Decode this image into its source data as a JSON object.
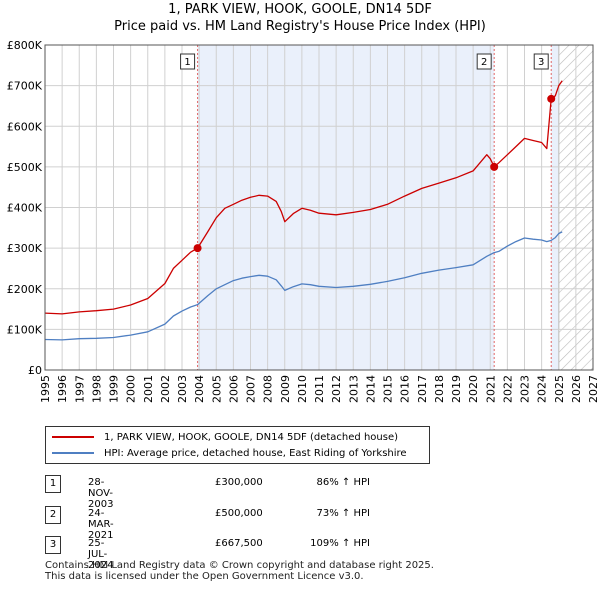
{
  "title_line1": "1, PARK VIEW, HOOK, GOOLE, DN14 5DF",
  "title_line2": "Price paid vs. HM Land Registry's House Price Index (HPI)",
  "chart_data": {
    "type": "line",
    "ylabel_ticks": [
      "£0",
      "£100K",
      "£200K",
      "£300K",
      "£400K",
      "£500K",
      "£600K",
      "£700K",
      "£800K"
    ],
    "y_ticks": [
      0,
      100000,
      200000,
      300000,
      400000,
      500000,
      600000,
      700000,
      800000
    ],
    "ylim": [
      0,
      800000
    ],
    "xlim": [
      1995,
      2027
    ],
    "x_ticks": [
      1995,
      1996,
      1997,
      1998,
      1999,
      2000,
      2001,
      2002,
      2003,
      2004,
      2005,
      2006,
      2007,
      2008,
      2009,
      2010,
      2011,
      2012,
      2013,
      2014,
      2015,
      2016,
      2017,
      2018,
      2019,
      2020,
      2021,
      2022,
      2023,
      2024,
      2025,
      2026,
      2027
    ],
    "future_start": 2025.0,
    "shaded_ranges": [
      [
        2003.91,
        2021.23
      ],
      [
        2024.56,
        2025.0
      ]
    ],
    "series": [
      {
        "name": "1, PARK VIEW, HOOK, GOOLE, DN14 5DF (detached house)",
        "color": "#cc0000",
        "points": [
          [
            1995.0,
            140000
          ],
          [
            1996.0,
            138000
          ],
          [
            1997.0,
            143000
          ],
          [
            1998.0,
            146000
          ],
          [
            1999.0,
            150000
          ],
          [
            2000.0,
            160000
          ],
          [
            2001.0,
            176000
          ],
          [
            2002.0,
            213000
          ],
          [
            2002.5,
            250000
          ],
          [
            2003.0,
            270000
          ],
          [
            2003.5,
            290000
          ],
          [
            2003.91,
            300000
          ],
          [
            2004.5,
            340000
          ],
          [
            2005.0,
            375000
          ],
          [
            2005.5,
            398000
          ],
          [
            2006.0,
            408000
          ],
          [
            2006.5,
            418000
          ],
          [
            2007.0,
            425000
          ],
          [
            2007.5,
            430000
          ],
          [
            2008.0,
            428000
          ],
          [
            2008.5,
            415000
          ],
          [
            2008.8,
            390000
          ],
          [
            2009.0,
            365000
          ],
          [
            2009.5,
            385000
          ],
          [
            2010.0,
            398000
          ],
          [
            2010.5,
            393000
          ],
          [
            2011.0,
            386000
          ],
          [
            2012.0,
            382000
          ],
          [
            2013.0,
            388000
          ],
          [
            2014.0,
            395000
          ],
          [
            2015.0,
            408000
          ],
          [
            2016.0,
            428000
          ],
          [
            2017.0,
            447000
          ],
          [
            2018.0,
            460000
          ],
          [
            2019.0,
            473000
          ],
          [
            2020.0,
            490000
          ],
          [
            2020.8,
            530000
          ],
          [
            2021.0,
            520000
          ],
          [
            2021.23,
            500000
          ],
          [
            2021.5,
            510000
          ],
          [
            2022.0,
            530000
          ],
          [
            2022.5,
            550000
          ],
          [
            2023.0,
            570000
          ],
          [
            2023.5,
            565000
          ],
          [
            2024.0,
            560000
          ],
          [
            2024.3,
            545000
          ],
          [
            2024.56,
            667500
          ],
          [
            2024.8,
            675000
          ],
          [
            2025.0,
            700000
          ],
          [
            2025.2,
            712000
          ]
        ]
      },
      {
        "name": "HPI: Average price, detached house, East Riding of Yorkshire",
        "color": "#4f7fc2",
        "points": [
          [
            1995.0,
            75000
          ],
          [
            1996.0,
            74000
          ],
          [
            1997.0,
            77000
          ],
          [
            1998.0,
            78000
          ],
          [
            1999.0,
            80000
          ],
          [
            2000.0,
            86000
          ],
          [
            2001.0,
            94000
          ],
          [
            2002.0,
            113000
          ],
          [
            2002.5,
            133000
          ],
          [
            2003.0,
            145000
          ],
          [
            2003.5,
            155000
          ],
          [
            2003.91,
            161000
          ],
          [
            2004.5,
            183000
          ],
          [
            2005.0,
            200000
          ],
          [
            2005.5,
            210000
          ],
          [
            2006.0,
            220000
          ],
          [
            2006.5,
            226000
          ],
          [
            2007.0,
            230000
          ],
          [
            2007.5,
            233000
          ],
          [
            2008.0,
            231000
          ],
          [
            2008.5,
            222000
          ],
          [
            2008.8,
            207000
          ],
          [
            2009.0,
            196000
          ],
          [
            2009.5,
            205000
          ],
          [
            2010.0,
            212000
          ],
          [
            2010.5,
            210000
          ],
          [
            2011.0,
            206000
          ],
          [
            2012.0,
            203000
          ],
          [
            2013.0,
            206000
          ],
          [
            2014.0,
            211000
          ],
          [
            2015.0,
            218000
          ],
          [
            2016.0,
            227000
          ],
          [
            2017.0,
            238000
          ],
          [
            2018.0,
            246000
          ],
          [
            2019.0,
            252000
          ],
          [
            2020.0,
            259000
          ],
          [
            2020.8,
            280000
          ],
          [
            2021.23,
            289000
          ],
          [
            2021.5,
            292000
          ],
          [
            2022.0,
            305000
          ],
          [
            2022.5,
            316000
          ],
          [
            2023.0,
            325000
          ],
          [
            2023.5,
            322000
          ],
          [
            2024.0,
            320000
          ],
          [
            2024.3,
            316000
          ],
          [
            2024.56,
            319000
          ],
          [
            2024.8,
            326000
          ],
          [
            2025.0,
            336000
          ],
          [
            2025.2,
            340000
          ]
        ]
      }
    ],
    "sales": [
      {
        "label": "1",
        "x": 2003.91,
        "y": 300000
      },
      {
        "label": "2",
        "x": 2021.23,
        "y": 500000
      },
      {
        "label": "3",
        "x": 2024.56,
        "y": 667500
      }
    ]
  },
  "legend": {
    "property_label": "1, PARK VIEW, HOOK, GOOLE, DN14 5DF (detached house)",
    "hpi_label": "HPI: Average price, detached house, East Riding of Yorkshire",
    "property_color": "#cc0000",
    "hpi_color": "#4f7fc2"
  },
  "transactions": [
    {
      "marker": "1",
      "date": "28-NOV-2003",
      "price": "£300,000",
      "hpi": "86% ↑ HPI"
    },
    {
      "marker": "2",
      "date": "24-MAR-2021",
      "price": "£500,000",
      "hpi": "73% ↑ HPI"
    },
    {
      "marker": "3",
      "date": "25-JUL-2024",
      "price": "£667,500",
      "hpi": "109% ↑ HPI"
    }
  ],
  "footer_line1": "Contains HM Land Registry data © Crown copyright and database right 2025.",
  "footer_line2": "This data is licensed under the Open Government Licence v3.0."
}
